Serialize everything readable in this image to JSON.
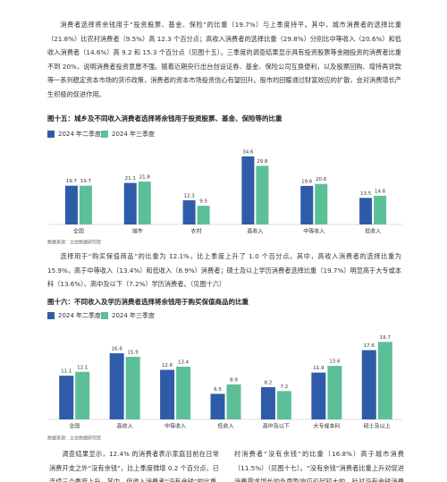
{
  "paragraphs": [
    "消费者选择将余钱用于“投资股票、基金、保险”的比重（19.7%）与上季度持平。其中，城市消费者的选择比重（21.8%）比农村消费者（9.5%）高 12.3 个百分点；高收入消费者的选择比重（29.8%）分别比中等收入（20.6%）和低收入消费者（14.6%）高 9.2 和 15.3 个百分点（见图十五）。三季度的调查结果显示具有投资股票等金融投资的消费者比重不到 20%，说明消费者投资意愿不强。随着近期央行出台创设证券、基金、保险公司互换便利，以及股票回购、增持再贷款等一系列稳定资本市场的货币政策，消费者的资本市场投资信心有望回升。股市的回暖通过财富效应的扩散，会对消费增长产生积极的促进作用。",
    "选择用于“购买保值商品”的比重为 12.1%，比上季度上升了 1.0 个百分点。其中，高收入消费者的选择比重为 15.9%，高于中等收入（13.4%）和低收入（8.9%）消费者；硕士及以上学历消费者选择比重（19.7%）明显高于大专或本科（13.6%）、高中及以下（7.2%）学历消费者。（见图十六）"
  ],
  "chart_data": [
    {
      "type": "bar",
      "title": "图十五：城乡及不同收入消费者选择将余钱用于投资股票、基金、保险等的比重",
      "categories": [
        "全国",
        "城市",
        "农村",
        "高收入",
        "中等收入",
        "低收入"
      ],
      "series": [
        {
          "name": "2024 年二季度",
          "color": "#2f5ca8",
          "values": [
            19.7,
            21.1,
            12.3,
            34.6,
            19.6,
            13.5
          ]
        },
        {
          "name": "2024 年三季度",
          "color": "#5dbf98",
          "values": [
            19.7,
            21.8,
            9.5,
            29.8,
            20.6,
            14.6
          ]
        }
      ],
      "source": "数据来源：立信数据研究院"
    },
    {
      "type": "bar",
      "title": "图十六：不同收入及学历消费者选择将余钱用于购买保值商品的比重",
      "categories": [
        "全国",
        "高收入",
        "中等收入",
        "低收入",
        "高中及以下",
        "大专或本科",
        "硕士及以上"
      ],
      "series": [
        {
          "name": "2024 年二季度",
          "color": "#2f5ca8",
          "values": [
            11.1,
            16.8,
            12.6,
            6.5,
            8.2,
            11.9,
            17.6
          ]
        },
        {
          "name": "2024 年三季度",
          "color": "#5dbf98",
          "values": [
            12.1,
            15.9,
            13.4,
            8.9,
            7.2,
            13.6,
            19.7
          ]
        }
      ],
      "source": "数据来源：立信数据研究院"
    }
  ],
  "bottom_columns": [
    "调查结果显示，12.4% 的消费者表示家庭目前在日常消费开支之外“没有余钱”，比上季度微增 0.2 个百分点，已连续三个季度上升。其中，低收入消费者“没有余钱”的比重",
    "村消费者“没有余钱”的比重（16.8%）高于城市消费（11.5%）（见图十七）。“没有余钱”消费者比重上升对促进消费需求增长的负面影响应引起较大的，针对没有余钱消费者比重持续上"
  ]
}
